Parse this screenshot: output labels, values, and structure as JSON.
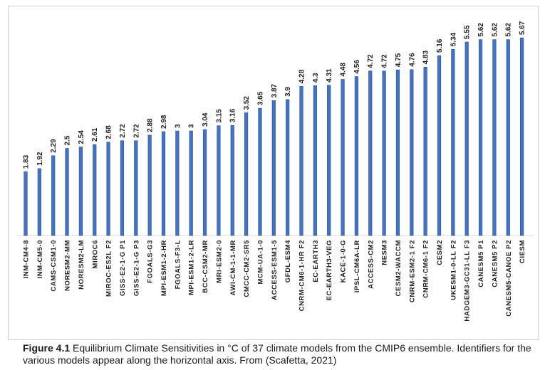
{
  "chart_data": {
    "type": "bar",
    "title": "",
    "xlabel": "",
    "ylabel": "",
    "ylim": [
      0,
      6
    ],
    "grid": false,
    "bar_color": "#4472c4",
    "categories": [
      "INM-CM4-8",
      "INM-CM5-0",
      "CAMS-CSM1-0",
      "NORESM2-MM",
      "NORESM2-LM",
      "MIROC6",
      "MIROC-ES2L F2",
      "GISS-E2-1-G P1",
      "GISS-E2-1-G P3",
      "FGOALS-G3",
      "MPI-ESM1-2-HR",
      "FGOALS-F3-L",
      "MPI-ESM1-2-LR",
      "BCC-CSM2-MR",
      "MRI-ESM2-0",
      "AWI-CM-1-1-MR",
      "CMCC-CM2-SR5",
      "MCM-UA-1-0",
      "ACCESS-ESM1-5",
      "GFDL-ESM4",
      "CNRM-CM6-1-HR F2",
      "EC-EARTH3",
      "EC-EARTH3-VEG",
      "KACE-1-0-G",
      "IPSL-CM6A-LR",
      "ACCESS-CM2",
      "NESM3",
      "CESM2-WACCM",
      "CNRM-ESM2-1 F2",
      "CNRM-CM6-1 F2",
      "CESM2",
      "UKESM1-0-LL F2",
      "HADGEM3-GC31-LL F3",
      "CANESM5 P1",
      "CANESM5 P2",
      "CANESM5-CANOE P2",
      "CIESM"
    ],
    "values": [
      1.83,
      1.92,
      2.29,
      2.5,
      2.54,
      2.61,
      2.68,
      2.72,
      2.72,
      2.88,
      2.98,
      3,
      3,
      3.04,
      3.15,
      3.16,
      3.52,
      3.65,
      3.87,
      3.9,
      4.28,
      4.3,
      4.31,
      4.48,
      4.56,
      4.72,
      4.72,
      4.75,
      4.76,
      4.83,
      5.16,
      5.34,
      5.55,
      5.62,
      5.62,
      5.62,
      5.67
    ],
    "value_labels": [
      "1.83",
      "1.92",
      "2.29",
      "2.5",
      "2.54",
      "2.61",
      "2.68",
      "2.72",
      "2.72",
      "2.88",
      "2.98",
      "3",
      "3",
      "3.04",
      "3.15",
      "3.16",
      "3.52",
      "3.65",
      "3.87",
      "3.9",
      "4.28",
      "4.3",
      "4.31",
      "4.48",
      "4.56",
      "4.72",
      "4.72",
      "4.75",
      "4.76",
      "4.83",
      "5.16",
      "5.34",
      "5.55",
      "5.62",
      "5.62",
      "5.62",
      "5.67"
    ]
  },
  "caption": {
    "label": "Figure 4.1",
    "text": " Equilibrium Climate Sensitivities in °C of 37 climate models from the CMIP6 ensemble. Identifiers for the various models appear along the horizontal axis. From (Scafetta, 2021)"
  }
}
